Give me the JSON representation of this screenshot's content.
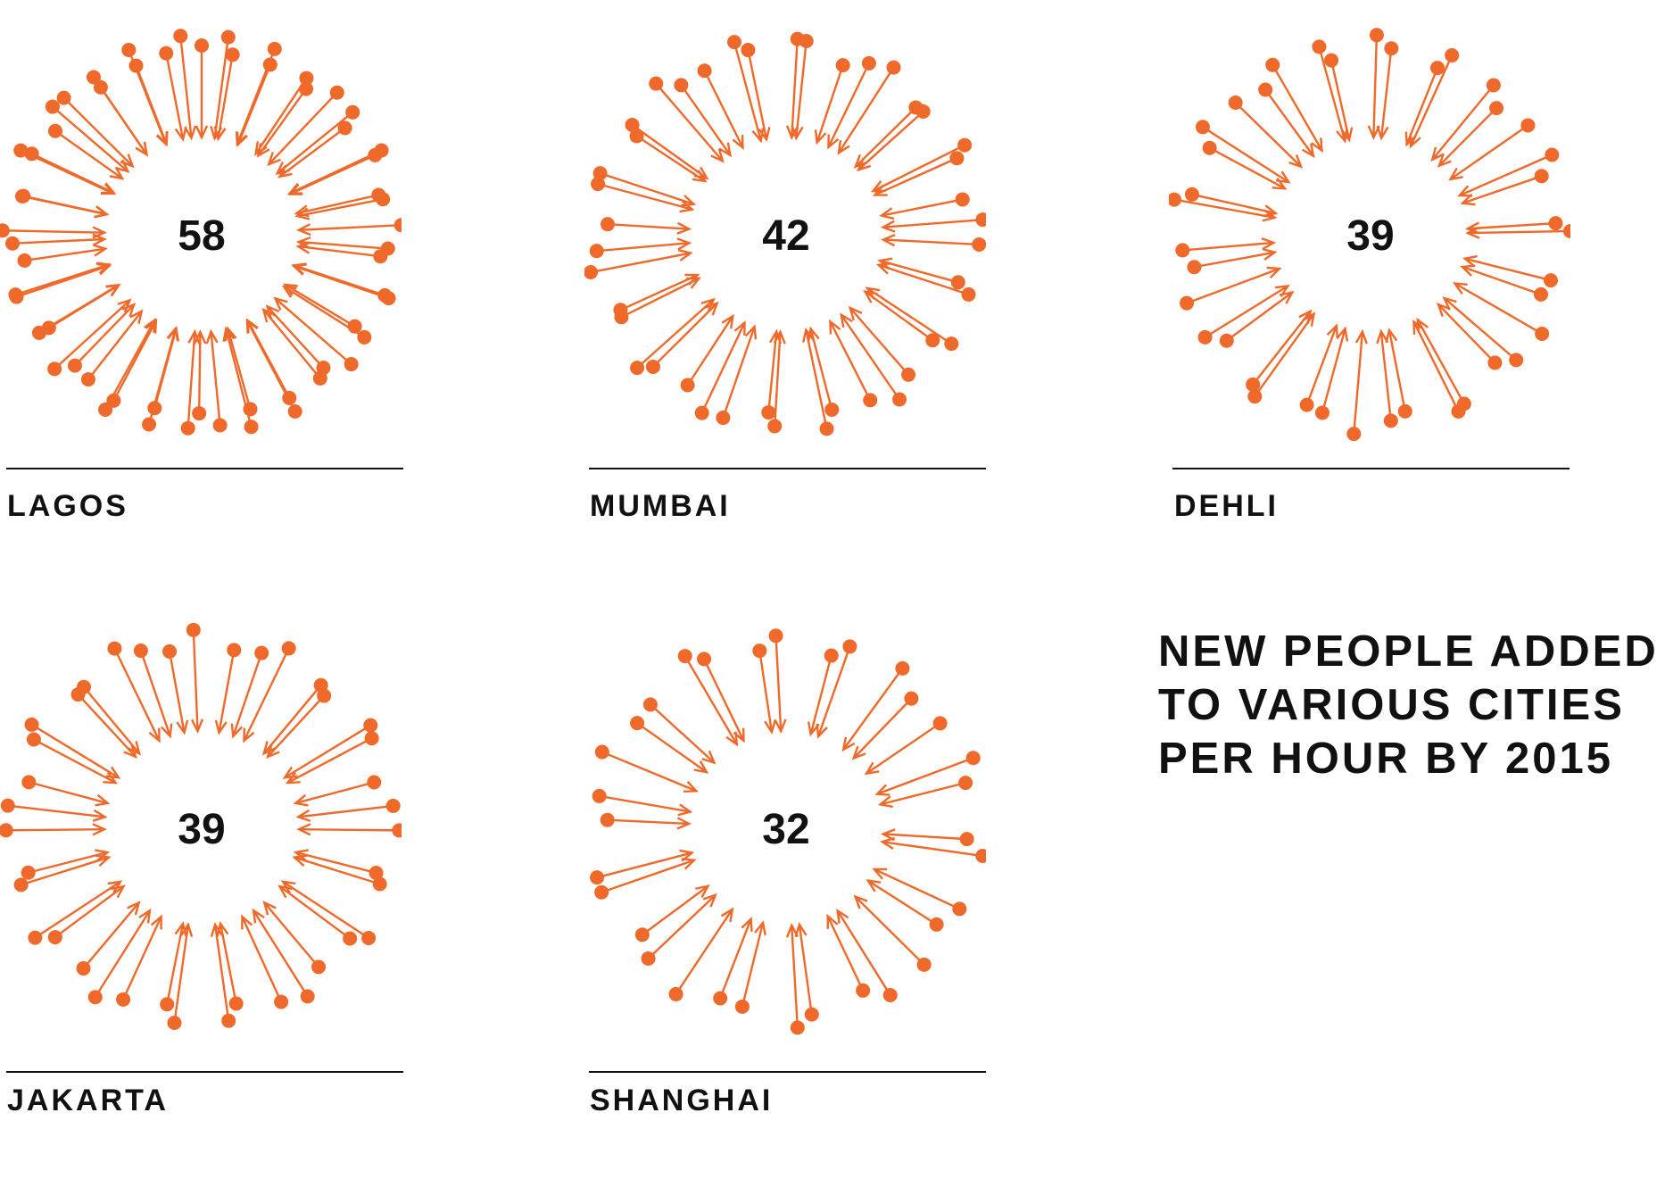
{
  "chart_data": {
    "type": "radial-count",
    "title_lines": [
      "NEW PEOPLE ADDED",
      "TO VARIOUS CITIES",
      "PER HOUR BY 2015"
    ],
    "accent_color": "#ef6a2a",
    "text_color": "#111111",
    "cities": [
      {
        "name": "LAGOS",
        "value": 58
      },
      {
        "name": "MUMBAI",
        "value": 42
      },
      {
        "name": "DEHLI",
        "value": 39
      },
      {
        "name": "JAKARTA",
        "value": 39
      },
      {
        "name": "SHANGHAI",
        "value": 32
      }
    ]
  }
}
